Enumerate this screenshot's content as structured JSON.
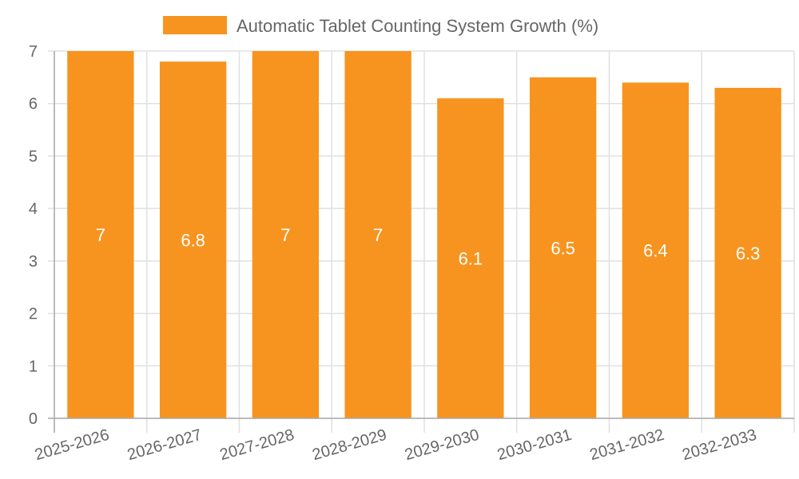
{
  "chart_data": {
    "type": "bar",
    "title": "",
    "legend": [
      {
        "label": "Automatic Tablet Counting System Growth (%)",
        "color": "#f7941f"
      }
    ],
    "legend_position": "top",
    "categories": [
      "2025-2026",
      "2026-2027",
      "2027-2028",
      "2028-2029",
      "2029-2030",
      "2030-2031",
      "2031-2032",
      "2032-2033"
    ],
    "series": [
      {
        "name": "Automatic Tablet Counting System Growth (%)",
        "values": [
          7,
          6.8,
          7,
          7,
          6.1,
          6.5,
          6.4,
          6.3
        ],
        "color": "#f7941f"
      }
    ],
    "data_labels": [
      "7",
      "6.8",
      "7",
      "7",
      "6.1",
      "6.5",
      "6.4",
      "6.3"
    ],
    "xlabel": "",
    "ylabel": "",
    "ylim": [
      0,
      7
    ],
    "yticks": [
      0,
      1,
      2,
      3,
      4,
      5,
      6,
      7
    ],
    "grid": true
  },
  "colors": {
    "bar": "#f7941f",
    "grid": "#e0e0e0",
    "axis": "#aaaaaa",
    "text": "#666666",
    "value_label": "#ffffff"
  }
}
